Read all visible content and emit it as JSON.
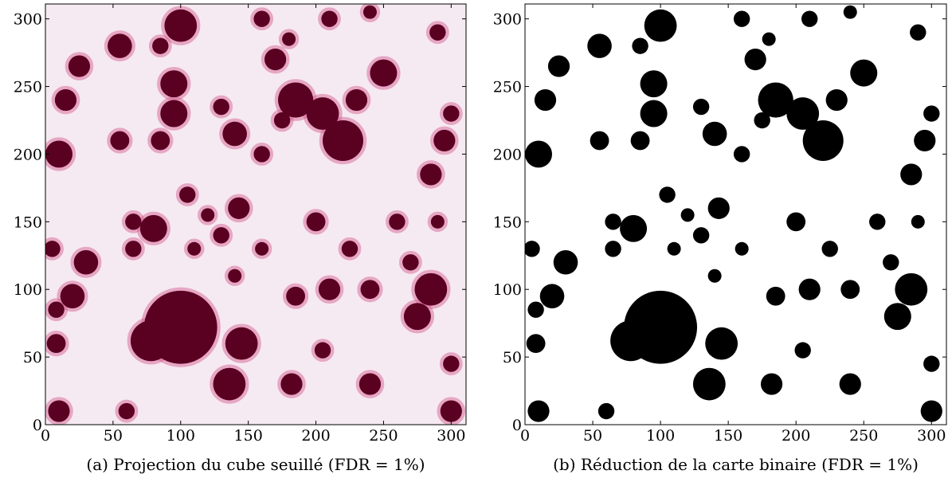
{
  "chart_data": [
    {
      "type": "image",
      "caption": "(a) Projection du cube seuillé (FDR = 1%)",
      "xlim": [
        0,
        311
      ],
      "ylim": [
        0,
        311
      ],
      "xticks": [
        0,
        50,
        100,
        150,
        200,
        250,
        300
      ],
      "yticks": [
        0,
        50,
        100,
        150,
        200,
        250,
        300
      ],
      "background": "#f6eaf2",
      "color": "#5a0020",
      "halo": "#d2568c"
    },
    {
      "type": "image",
      "caption": "(b) Réduction de la carte binaire (FDR = 1%)",
      "xlim": [
        0,
        311
      ],
      "ylim": [
        0,
        311
      ],
      "xticks": [
        0,
        50,
        100,
        150,
        200,
        250,
        300
      ],
      "yticks": [
        0,
        50,
        100,
        150,
        200,
        250,
        300
      ],
      "background": "#ffffff",
      "color": "#000000"
    }
  ]
}
